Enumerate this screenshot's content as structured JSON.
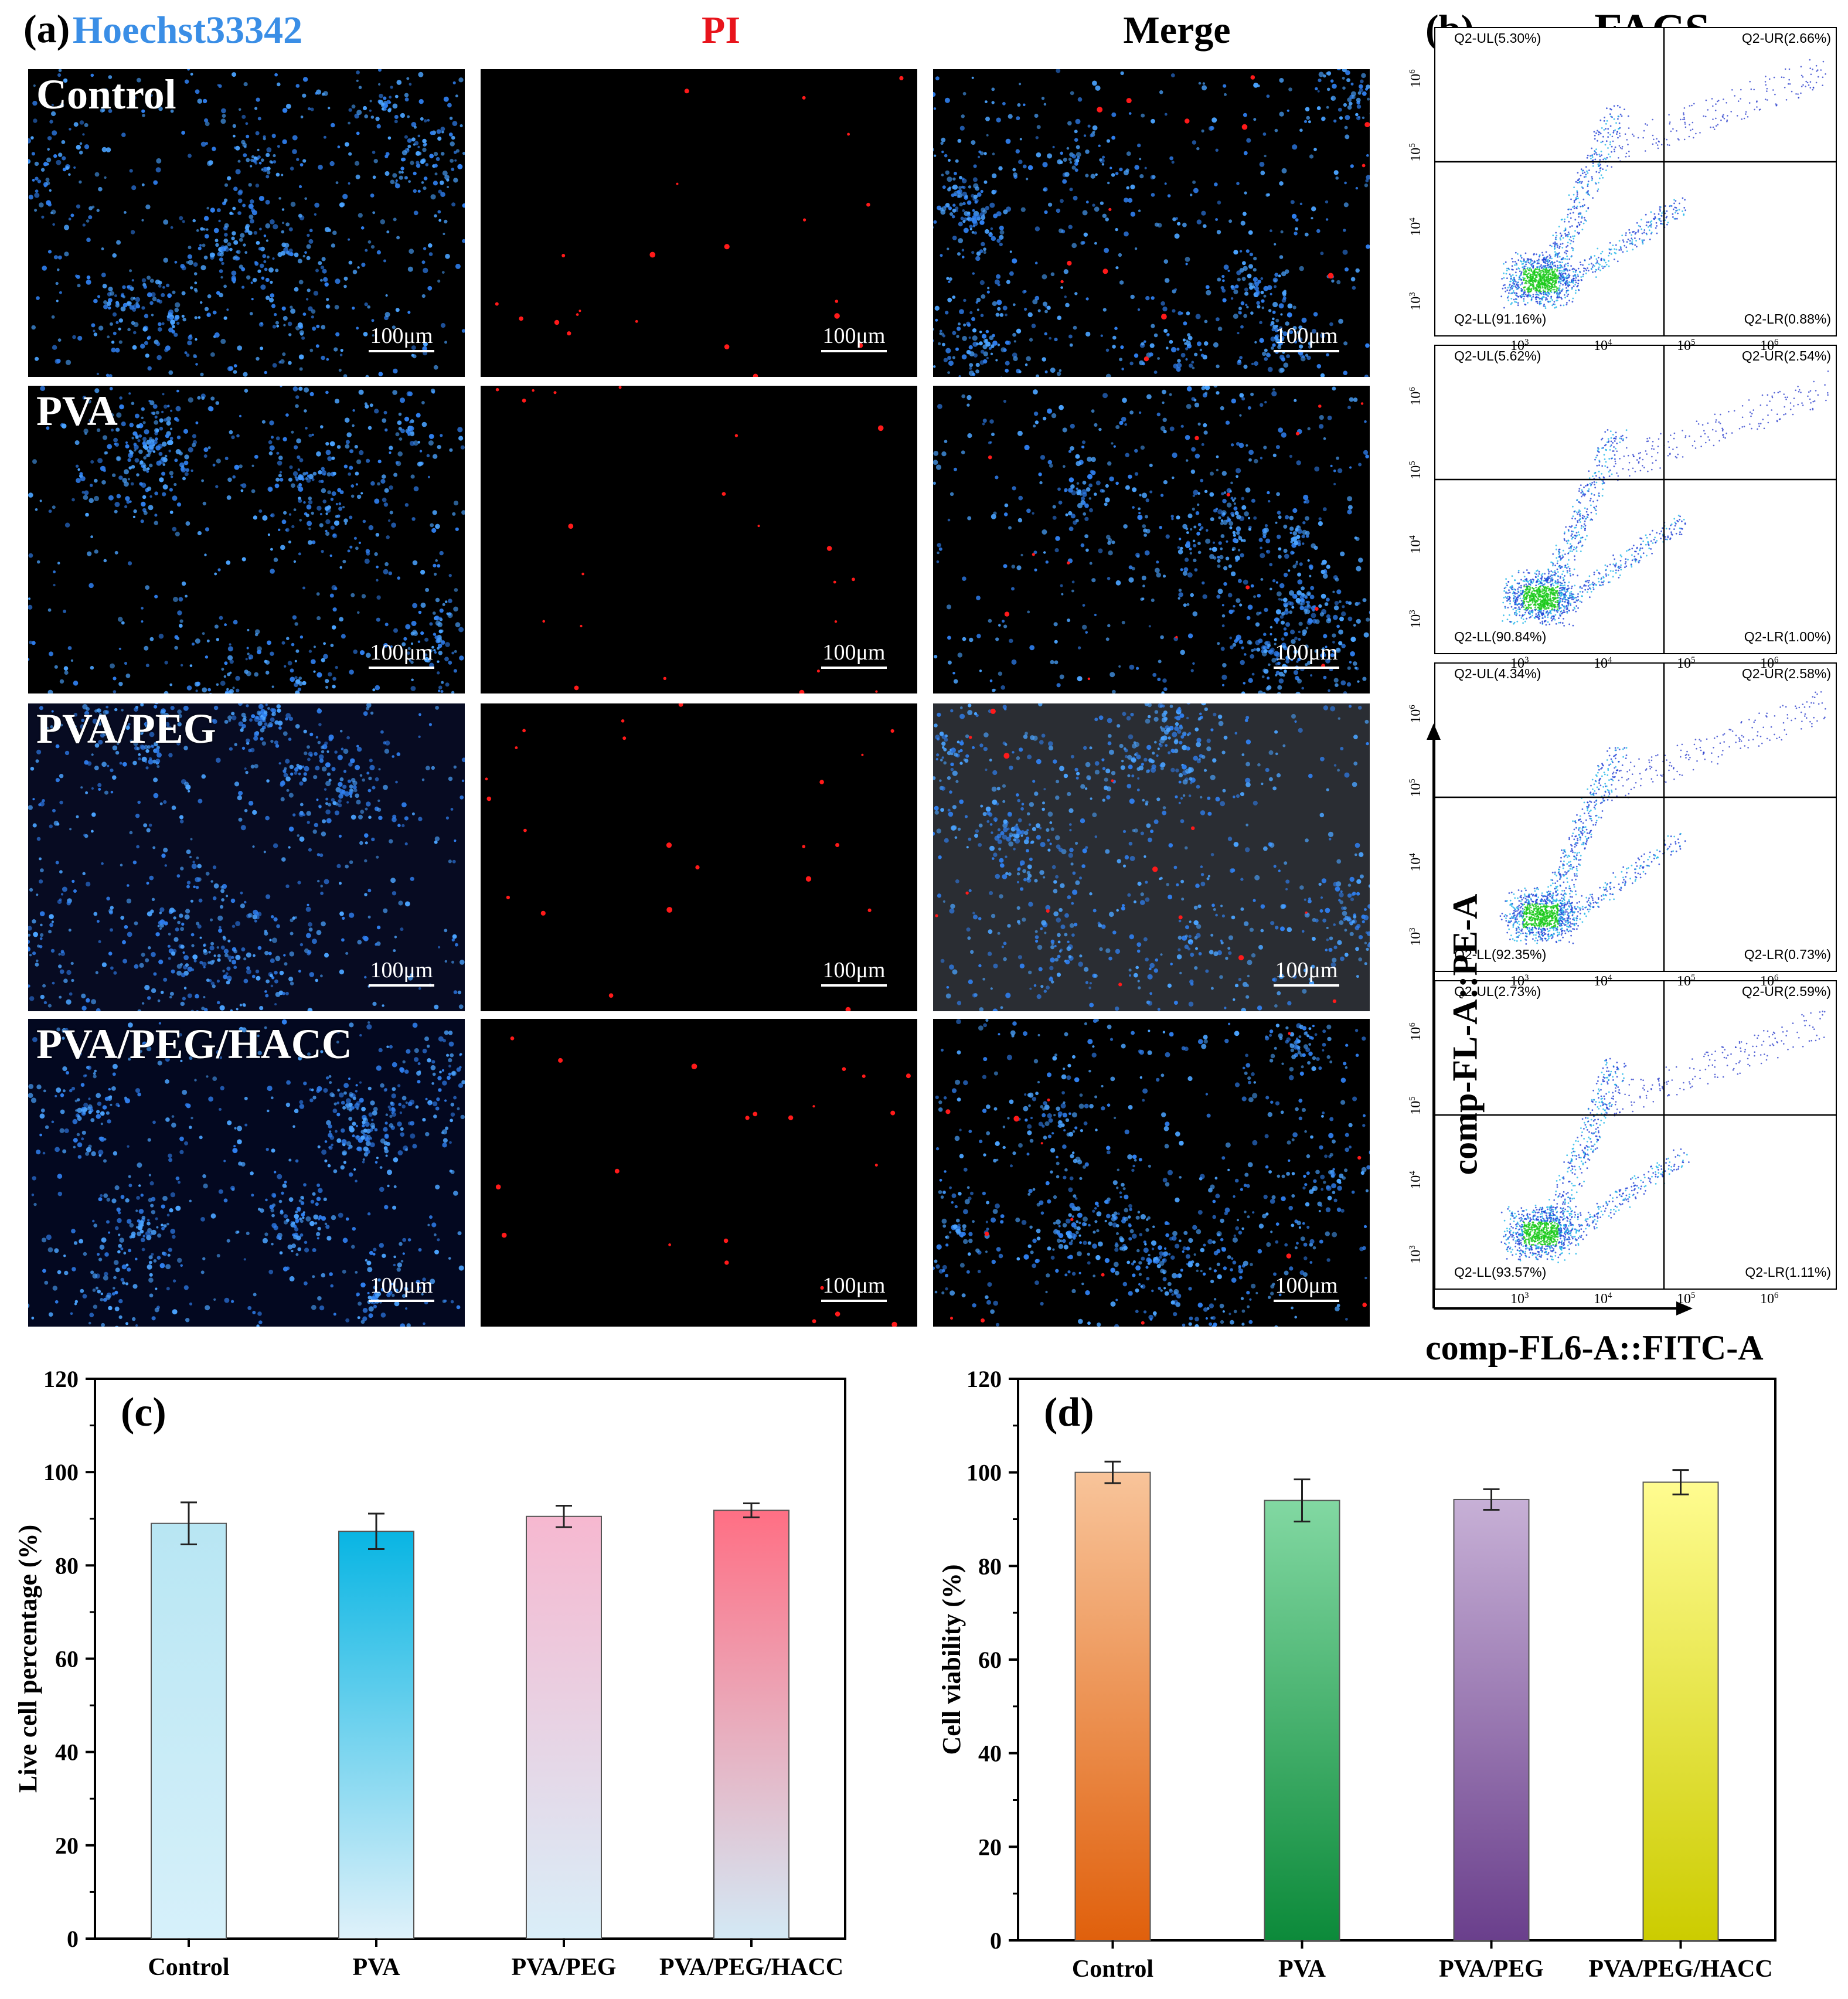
{
  "panel_a": {
    "label": "(a)",
    "columns": [
      {
        "label": "Hoechst33342",
        "color": "#3a8ee6"
      },
      {
        "label": "PI",
        "color": "#e8141c"
      },
      {
        "label": "Merge",
        "color": "#000000"
      }
    ],
    "rows": [
      "Control",
      "PVA",
      "PVA/PEG",
      "PVA/PEG/HACC"
    ],
    "scale_bar": "100μm"
  },
  "panel_b": {
    "label": "(b)",
    "title": "FACS",
    "y_axis_label": "comp-FL-A::PE-A",
    "x_axis_label": "comp-FL6-A::FITC-A",
    "x_ticks": [
      "10",
      "10",
      "10",
      "10"
    ],
    "x_tick_exponents": [
      "3",
      "4",
      "5",
      "6"
    ],
    "y_ticks": [
      "10",
      "10",
      "10",
      "10"
    ],
    "y_tick_exponents": [
      "3",
      "4",
      "5",
      "6"
    ],
    "plots": [
      {
        "group": "Control",
        "UL": "Q2-UL(5.30%)",
        "UR": "Q2-UR(2.66%)",
        "LL": "Q2-LL(91.16%)",
        "LR": "Q2-LR(0.88%)"
      },
      {
        "group": "PVA",
        "UL": "Q2-UL(5.62%)",
        "UR": "Q2-UR(2.54%)",
        "LL": "Q2-LL(90.84%)",
        "LR": "Q2-LR(1.00%)"
      },
      {
        "group": "PVA/PEG",
        "UL": "Q2-UL(4.34%)",
        "UR": "Q2-UR(2.58%)",
        "LL": "Q2-LL(92.35%)",
        "LR": "Q2-LR(0.73%)"
      },
      {
        "group": "PVA/PEG/HACC",
        "UL": "Q2-UL(2.73%)",
        "UR": "Q2-UR(2.59%)",
        "LL": "Q2-LL(93.57%)",
        "LR": "Q2-LR(1.11%)"
      }
    ]
  },
  "chart_data": [
    {
      "type": "bar",
      "panel": "(c)",
      "title": "",
      "xlabel": "",
      "ylabel": "Live cell percentage (%)",
      "categories": [
        "Control",
        "PVA",
        "PVA/PEG",
        "PVA/PEG/HACC"
      ],
      "values": [
        89.0,
        87.3,
        90.5,
        91.8
      ],
      "errors": [
        4.5,
        3.8,
        2.3,
        1.5
      ],
      "ylim": [
        0,
        120
      ],
      "yticks": [
        0,
        20,
        40,
        60,
        80,
        100,
        120
      ],
      "colors": [
        [
          "#b8e6f3",
          "#d6f0fa"
        ],
        [
          "#08b5e3",
          "#dff1fa"
        ],
        [
          "#f6b8d0",
          "#d9eef8"
        ],
        [
          "#ff6f84",
          "#d3e9f5"
        ]
      ]
    },
    {
      "type": "bar",
      "panel": "(d)",
      "title": "",
      "xlabel": "",
      "ylabel": "Cell viability (%)",
      "categories": [
        "Control",
        "PVA",
        "PVA/PEG",
        "PVA/PEG/HACC"
      ],
      "values": [
        100.0,
        94.0,
        94.2,
        97.9
      ],
      "errors": [
        2.3,
        4.5,
        2.2,
        2.6
      ],
      "ylim": [
        0,
        120
      ],
      "yticks": [
        0,
        20,
        40,
        60,
        80,
        100,
        120
      ],
      "colors": [
        [
          "#f8c49a",
          "#e0600c"
        ],
        [
          "#82d8a2",
          "#0c8a3a"
        ],
        [
          "#c7b0d6",
          "#6a3f8c"
        ],
        [
          "#fffc90",
          "#cccc00"
        ]
      ]
    }
  ]
}
